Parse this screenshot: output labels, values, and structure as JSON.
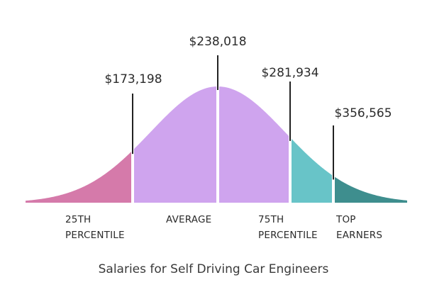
{
  "chart_data": {
    "type": "area",
    "title": "",
    "caption": "Salaries for Self Driving Car Engineers",
    "colors": {
      "p25": "#d57aaa",
      "average": "#cfa4ee",
      "p75": "#68c4c8",
      "top": "#3e8e8e",
      "marker": "#222222"
    },
    "markers": [
      {
        "key": "p25",
        "value": "$173,198",
        "amount": 173198
      },
      {
        "key": "average",
        "value": "$238,018",
        "amount": 238018
      },
      {
        "key": "p75",
        "value": "$281,934",
        "amount": 281934
      },
      {
        "key": "top",
        "value": "$356,565",
        "amount": 356565
      }
    ],
    "segments": [
      {
        "key": "p25",
        "line1": "25TH",
        "line2": "PERCENTILE"
      },
      {
        "key": "average",
        "line1": "AVERAGE",
        "line2": ""
      },
      {
        "key": "p75",
        "line1": "75TH",
        "line2": "PERCENTILE"
      },
      {
        "key": "top",
        "line1": "TOP",
        "line2": "EARNERS"
      }
    ]
  }
}
